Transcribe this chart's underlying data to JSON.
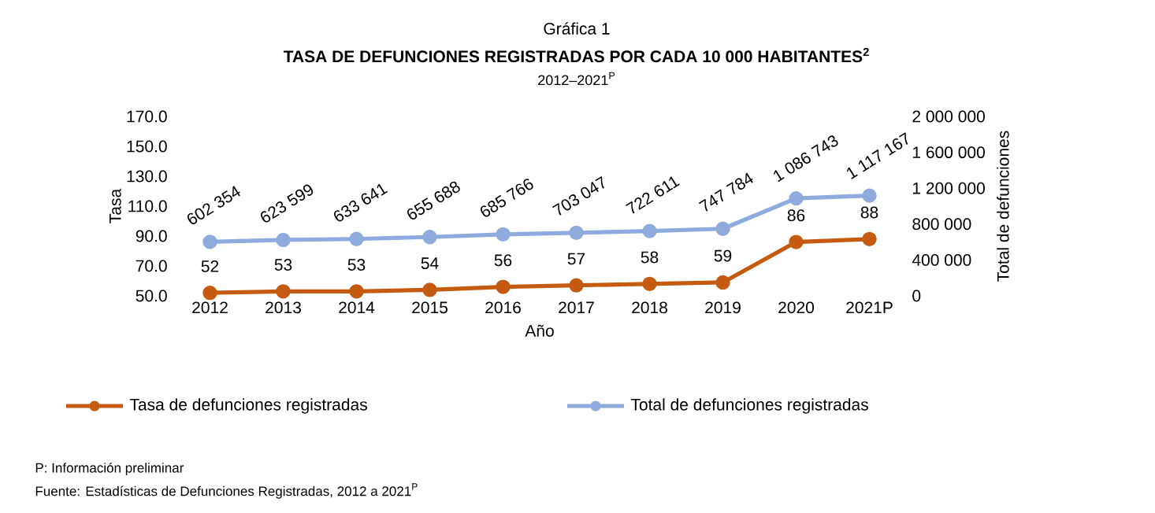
{
  "chart_data": {
    "type": "line",
    "title": "Gráfica 1",
    "subtitle": "TASA DE DEFUNCIONES REGISTRADAS POR CADA 10 000 HABITANTES$^{2}$",
    "xlabel": "Año",
    "ylabel": "Tasa",
    "y2label": "Total de defunciones",
    "annotations": [
      "2012–2021$^{P}$",
      "P: Información preliminar",
      "Fuente: Estadísticas de Defunciones Registradas, 2012 a 2021$^{P}$"
    ],
    "categories": [
      "2012",
      "2013",
      "2014",
      "2015",
      "2016",
      "2017",
      "2018",
      "2019",
      "2020",
      "2021P"
    ],
    "series": [
      {
        "name": "Tasa de defunciones registradas",
        "color": "#c55a11",
        "values": [
          52,
          53,
          53,
          54,
          56,
          57,
          58,
          59,
          86,
          88
        ],
        "value_labels": [
          "52",
          "53",
          "53",
          "54",
          "56",
          "57",
          "58",
          "59",
          "86",
          "88"
        ]
      },
      {
        "name": "Total de defunciones registradas",
        "color": "#8faadc",
        "axis": "y2",
        "values": [
          602354,
          623599,
          633641,
          655688,
          685766,
          703047,
          722611,
          747784,
          1086743,
          1117167
        ],
        "value_labels": [
          "602 354",
          "623 599",
          "633 641",
          "655 688",
          "685 766",
          "703 047",
          "722 611",
          "747 784",
          "1 086 743",
          "1 117 167"
        ]
      }
    ],
    "ylim": [
      50,
      170
    ],
    "yticks": [
      {
        "value": 50,
        "label": "50.0"
      },
      {
        "value": 70,
        "label": "70.0"
      },
      {
        "value": 90,
        "label": "90.0"
      },
      {
        "value": 110,
        "label": "110.0"
      },
      {
        "value": 130,
        "label": "130.0"
      },
      {
        "value": 150,
        "label": "150.0"
      },
      {
        "value": 170,
        "label": "170.0"
      }
    ],
    "y2lim": [
      0,
      2000000
    ],
    "y2ticks": [
      0,
      {
        "value": 400000,
        "label": "400 000"
      },
      {
        "value": 800000,
        "label": "800 000"
      },
      {
        "value": 1200000,
        "label": "1 200 000"
      },
      {
        "value": 1600000,
        "label": "1 600 000"
      },
      {
        "value": 2000000,
        "label": "2 000 000"
      }
    ],
    "legend": "bottom",
    "marker": "circle",
    "grid": false
  }
}
